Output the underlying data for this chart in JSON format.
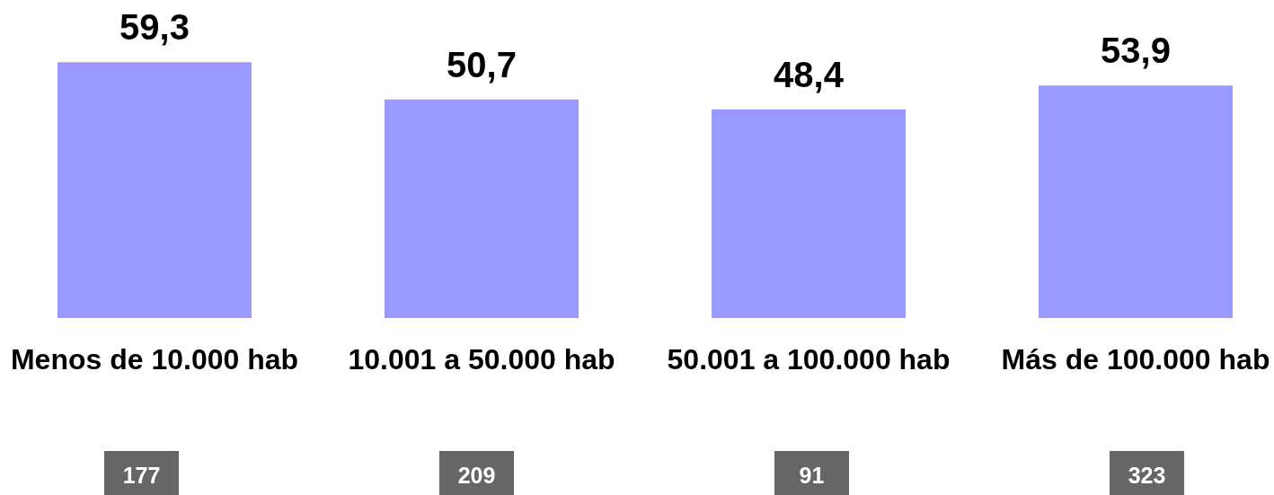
{
  "chart_data": {
    "type": "bar",
    "categories": [
      "Menos de 10.000 hab",
      "10.001 a 50.000 hab",
      "50.001 a 100.000 hab",
      "Más de 100.000 hab"
    ],
    "values": [
      59.3,
      50.7,
      48.4,
      53.9
    ],
    "value_labels": [
      "59,3",
      "50,7",
      "48,4",
      "53,9"
    ],
    "color": "#9999ff",
    "tick_labels": "x",
    "annotations": [
      "177",
      "209",
      "91",
      "323"
    ]
  }
}
